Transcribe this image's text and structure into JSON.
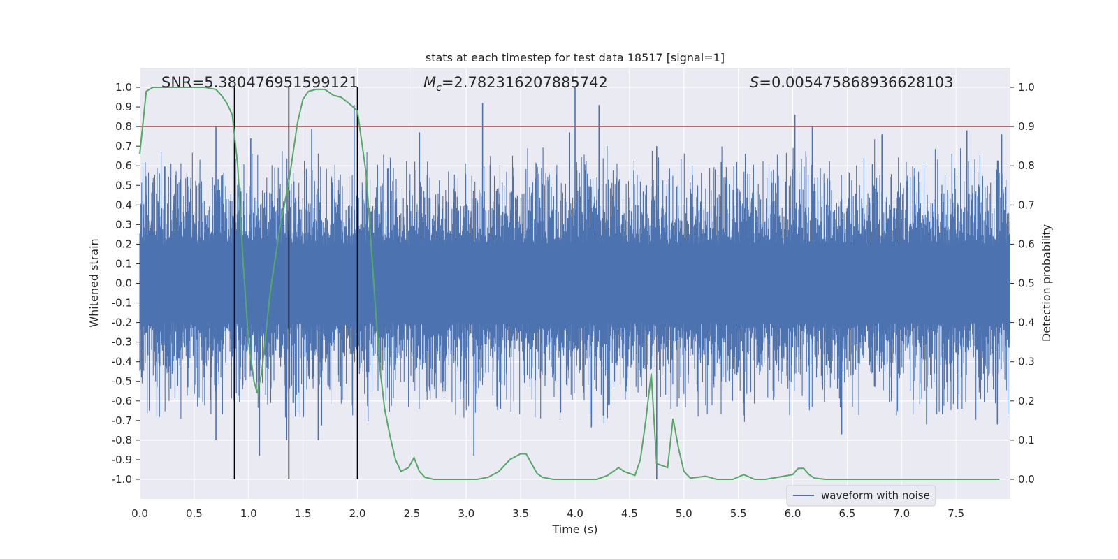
{
  "chart_data": {
    "type": "line",
    "title": "stats at each timestep for test data 18517 [signal=1]",
    "xlabel": "Time (s)",
    "ylabel_left": "Whitened strain",
    "ylabel_right": "Detection probability",
    "xlim": [
      0.0,
      8.0
    ],
    "ylim_left": [
      -1.1,
      1.1
    ],
    "ylim_right": [
      -0.05,
      1.05
    ],
    "x_ticks": [
      "0.0",
      "0.5",
      "1.0",
      "1.5",
      "2.0",
      "2.5",
      "3.0",
      "3.5",
      "4.0",
      "4.5",
      "5.0",
      "5.5",
      "6.0",
      "6.5",
      "7.0",
      "7.5"
    ],
    "y_ticks_left": [
      "1.0",
      "0.9",
      "0.8",
      "0.7",
      "0.6",
      "0.5",
      "0.4",
      "0.3",
      "0.2",
      "0.1",
      "0.0",
      "-0.1",
      "-0.2",
      "-0.3",
      "-0.4",
      "-0.5",
      "-0.6",
      "-0.7",
      "-0.8",
      "-0.9",
      "-1.0"
    ],
    "y_ticks_right": [
      "1.0",
      "0.9",
      "0.8",
      "0.7",
      "0.6",
      "0.5",
      "0.4",
      "0.3",
      "0.2",
      "0.1",
      "0.0"
    ],
    "threshold_right": 0.9,
    "vertical_lines_x": [
      0.87,
      1.37,
      2.0
    ],
    "annotations": {
      "snr_text": "SNR=5.380476951599121",
      "mc_symbol": "M",
      "mc_sub": "c",
      "mc_value": "=2.782316207885742",
      "s_symbol": "S",
      "s_value": "=0.005475868936628103"
    },
    "legend": [
      "waveform with noise"
    ],
    "waveform": {
      "name": "waveform with noise",
      "band_low": -0.2,
      "band_high": 0.2,
      "dense_low": -0.4,
      "dense_high": 0.4,
      "spikes": [
        {
          "x": 0.7,
          "y": 0.8
        },
        {
          "x": 1.02,
          "y": 0.74
        },
        {
          "x": 1.58,
          "y": 0.79
        },
        {
          "x": 1.97,
          "y": 0.91
        },
        {
          "x": 2.57,
          "y": 0.77
        },
        {
          "x": 3.15,
          "y": 0.92
        },
        {
          "x": 3.95,
          "y": 0.77
        },
        {
          "x": 4.0,
          "y": 1.0
        },
        {
          "x": 4.22,
          "y": 0.91
        },
        {
          "x": 4.75,
          "y": 0.7
        },
        {
          "x": 6.02,
          "y": 0.86
        },
        {
          "x": 6.18,
          "y": 0.8
        },
        {
          "x": 6.82,
          "y": 0.76
        },
        {
          "x": 7.6,
          "y": 0.78
        },
        {
          "x": 7.92,
          "y": 0.76
        },
        {
          "x": 0.7,
          "y": -0.8
        },
        {
          "x": 1.1,
          "y": -0.88
        },
        {
          "x": 1.35,
          "y": -0.8
        },
        {
          "x": 1.64,
          "y": -0.8
        },
        {
          "x": 3.07,
          "y": -0.88
        },
        {
          "x": 4.15,
          "y": -0.73
        },
        {
          "x": 4.75,
          "y": -1.0
        },
        {
          "x": 6.45,
          "y": -0.77
        },
        {
          "x": 7.23,
          "y": -0.72
        },
        {
          "x": 7.88,
          "y": -0.72
        }
      ]
    },
    "probability": {
      "name": "detection probability",
      "x": [
        0.0,
        0.06,
        0.12,
        0.2,
        0.3,
        0.4,
        0.5,
        0.6,
        0.7,
        0.75,
        0.8,
        0.85,
        0.9,
        0.95,
        1.0,
        1.05,
        1.08,
        1.12,
        1.2,
        1.28,
        1.37,
        1.45,
        1.5,
        1.55,
        1.62,
        1.7,
        1.78,
        1.85,
        1.92,
        2.0,
        2.08,
        2.15,
        2.2,
        2.25,
        2.3,
        2.35,
        2.4,
        2.47,
        2.52,
        2.57,
        2.62,
        2.7,
        2.8,
        3.0,
        3.1,
        3.2,
        3.3,
        3.4,
        3.5,
        3.55,
        3.6,
        3.65,
        3.7,
        3.8,
        3.95,
        4.1,
        4.2,
        4.3,
        4.4,
        4.45,
        4.5,
        4.55,
        4.6,
        4.65,
        4.7,
        4.75,
        4.8,
        4.85,
        4.9,
        4.95,
        5.0,
        5.06,
        5.12,
        5.2,
        5.3,
        5.45,
        5.55,
        5.65,
        5.75,
        5.9,
        6.0,
        6.05,
        6.1,
        6.15,
        6.2,
        6.3,
        6.5,
        6.7,
        6.9,
        7.1,
        7.3,
        7.5,
        7.7,
        7.9
      ],
      "y": [
        0.83,
        0.99,
        1.0,
        1.0,
        1.0,
        1.0,
        1.0,
        1.0,
        0.995,
        0.98,
        0.96,
        0.93,
        0.8,
        0.55,
        0.35,
        0.25,
        0.22,
        0.27,
        0.48,
        0.63,
        0.76,
        0.91,
        0.97,
        0.99,
        0.995,
        0.995,
        0.98,
        0.975,
        0.96,
        0.94,
        0.78,
        0.5,
        0.3,
        0.18,
        0.11,
        0.05,
        0.02,
        0.03,
        0.055,
        0.02,
        0.005,
        0.0,
        0.0,
        0.0,
        0.0,
        0.005,
        0.02,
        0.05,
        0.065,
        0.065,
        0.04,
        0.015,
        0.005,
        0.0,
        0.0,
        0.0,
        0.0,
        0.01,
        0.03,
        0.02,
        0.015,
        0.01,
        0.05,
        0.15,
        0.27,
        0.04,
        0.035,
        0.03,
        0.155,
        0.08,
        0.02,
        0.003,
        0.005,
        0.008,
        0.0,
        0.0,
        0.012,
        0.0,
        0.0,
        0.007,
        0.012,
        0.028,
        0.028,
        0.012,
        0.003,
        0.0,
        0.0,
        0.0,
        0.0,
        0.0,
        0.0,
        0.0,
        0.0,
        0.0
      ]
    },
    "colors": {
      "background": "#eaeaf2",
      "grid": "#ffffff",
      "waveform": "#4c72b0",
      "probability": "#55a868",
      "threshold": "#c44e52",
      "vlines": "#000000"
    }
  }
}
